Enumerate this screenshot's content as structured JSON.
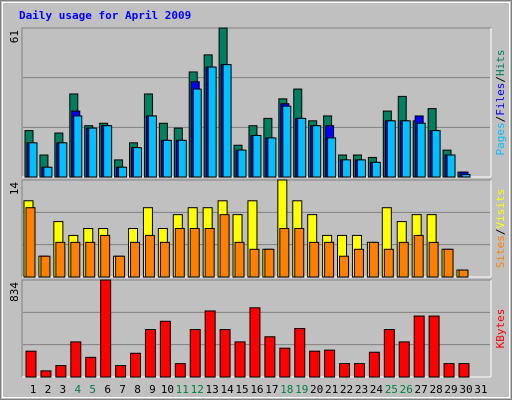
{
  "chart_data": {
    "type": "bar",
    "title": "Daily usage for April 2009",
    "categories": [
      "1",
      "2",
      "3",
      "4",
      "5",
      "6",
      "7",
      "8",
      "9",
      "10",
      "11",
      "12",
      "13",
      "14",
      "15",
      "16",
      "17",
      "18",
      "19",
      "20",
      "21",
      "22",
      "23",
      "24",
      "25",
      "26",
      "27",
      "28",
      "29",
      "30",
      "31"
    ],
    "category_colors": [
      "#000000",
      "#000000",
      "#000000",
      "#008040",
      "#008040",
      "#000000",
      "#000000",
      "#000000",
      "#000000",
      "#000000",
      "#008040",
      "#008040",
      "#000000",
      "#000000",
      "#000000",
      "#000000",
      "#000000",
      "#008040",
      "#008040",
      "#000000",
      "#000000",
      "#000000",
      "#000000",
      "#000000",
      "#008040",
      "#008040",
      "#000000",
      "#000000",
      "#000000",
      "#000000",
      "#000000"
    ],
    "legend_separator": "/",
    "grid_divisions": 3,
    "panels": [
      {
        "ylim": [
          0,
          61
        ],
        "yticks": [
          61
        ],
        "series": [
          {
            "name": "Hits",
            "color": "#008060",
            "values": [
              19,
              9,
              18,
              34,
              21,
              22,
              7,
              14,
              34,
              22,
              20,
              43,
              50,
              61,
              13,
              21,
              24,
              32,
              36,
              23,
              25,
              9,
              9,
              8,
              27,
              33,
              23,
              28,
              11,
              2,
              0
            ]
          },
          {
            "name": "Files",
            "color": "#0000ff",
            "values": [
              14,
              4,
              14,
              27,
              20,
              21,
              4,
              12,
              25,
              15,
              15,
              39,
              45,
              46,
              11,
              17,
              16,
              30,
              24,
              21,
              21,
              7,
              7,
              6,
              23,
              23,
              25,
              19,
              9,
              2,
              0
            ]
          },
          {
            "name": "Pages",
            "color": "#00c0ff",
            "values": [
              14,
              4,
              14,
              25,
              20,
              21,
              4,
              12,
              25,
              15,
              15,
              36,
              45,
              46,
              11,
              17,
              16,
              29,
              24,
              21,
              16,
              7,
              7,
              6,
              23,
              23,
              22,
              19,
              9,
              1,
              0
            ]
          }
        ]
      },
      {
        "ylim": [
          0,
          14
        ],
        "yticks": [
          14
        ],
        "series": [
          {
            "name": "Visits",
            "color": "#ffff00",
            "values": [
              11,
              3,
              8,
              6,
              7,
              7,
              3,
              7,
              10,
              7,
              9,
              10,
              10,
              11,
              9,
              11,
              4,
              14,
              11,
              9,
              6,
              6,
              6,
              5,
              10,
              8,
              9,
              9,
              4,
              1,
              0
            ]
          },
          {
            "name": "Sites",
            "color": "#ff8000",
            "values": [
              10,
              3,
              5,
              5,
              5,
              6,
              3,
              5,
              6,
              5,
              7,
              7,
              7,
              9,
              5,
              4,
              4,
              7,
              7,
              5,
              5,
              3,
              4,
              5,
              4,
              5,
              6,
              5,
              4,
              1,
              0
            ]
          }
        ]
      },
      {
        "ylim": [
          0,
          834
        ],
        "yticks": [
          834
        ],
        "series": [
          {
            "name": "KBytes",
            "color": "#ff0000",
            "values": [
              222,
              53,
              98,
              302,
              169,
              834,
              98,
              204,
              408,
              479,
              115,
              408,
              568,
              408,
              302,
              595,
              346,
              248,
              417,
              222,
              231,
              115,
              115,
              213,
              408,
              302,
              524,
              524,
              115,
              115,
              0
            ]
          }
        ]
      }
    ]
  }
}
